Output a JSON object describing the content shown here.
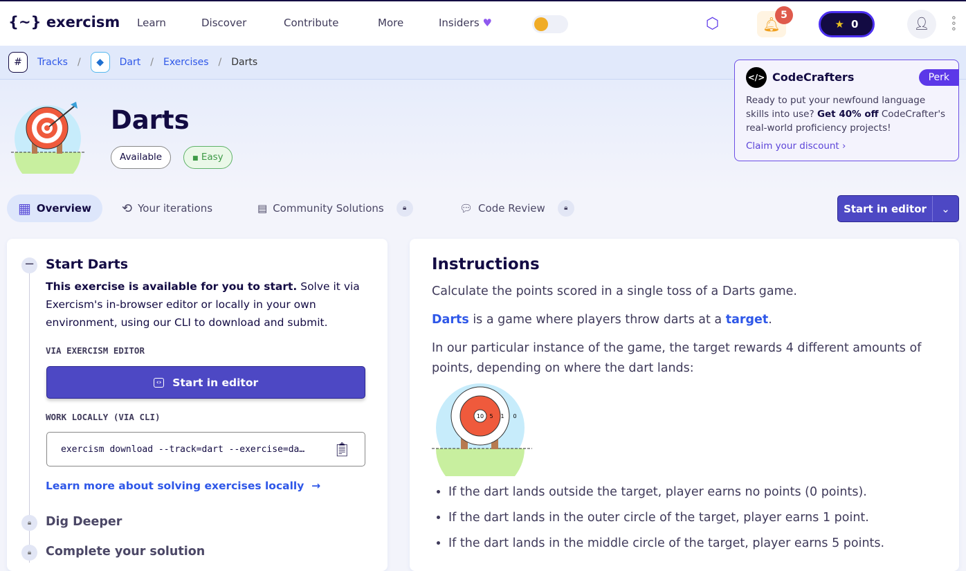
{
  "header": {
    "logo": "exercism",
    "nav": [
      "Learn",
      "Discover",
      "Contribute",
      "More",
      "Insiders"
    ],
    "notifications": "5",
    "reputation": "0"
  },
  "breadcrumb": [
    "Tracks",
    "Dart",
    "Exercises",
    "Darts"
  ],
  "exercise": {
    "title": "Darts",
    "status": "Available",
    "difficulty": "Easy"
  },
  "perk": {
    "brand": "CodeCrafters",
    "tag": "Perk",
    "text1": "Ready to put your newfound language skills into use? ",
    "bold": "Get 40% off",
    "text2": " CodeCrafter's real-world proficiency projects!",
    "link": "Claim your discount"
  },
  "tabs": [
    {
      "label": "Overview"
    },
    {
      "label": "Your iterations"
    },
    {
      "label": "Community Solutions"
    },
    {
      "label": "Code Review"
    }
  ],
  "start_button": "Start in editor",
  "left": {
    "heading": "Start Darts",
    "intro_bold": "This exercise is available for you to start.",
    "intro": " Solve it via Exercism's in-browser editor or locally in your own environment, using our CLI to download and submit.",
    "via_editor": "VIA EXERCISM EDITOR",
    "editor_button": "Start in editor",
    "via_cli": "WORK LOCALLY (VIA CLI)",
    "cli_command": "exercism download --track=dart --exercise=da…",
    "learn_more": "Learn more about solving exercises locally",
    "dig_deeper": "Dig Deeper",
    "complete": "Complete your solution"
  },
  "instructions": {
    "title": "Instructions",
    "p1": "Calculate the points scored in a single toss of a Darts game.",
    "darts_link": "Darts",
    "p2_mid": " is a game where players throw darts at a ",
    "target_link": "target",
    "p2_end": ".",
    "p3": "In our particular instance of the game, the target rewards 4 different amounts of points, depending on where the dart lands:",
    "target_labels": [
      "10",
      "5",
      "1",
      "0"
    ],
    "bullets": [
      "If the dart lands outside the target, player earns no points (0 points).",
      "If the dart lands in the outer circle of the target, player earns 1 point.",
      "If the dart lands in the middle circle of the target, player earns 5 points."
    ]
  }
}
